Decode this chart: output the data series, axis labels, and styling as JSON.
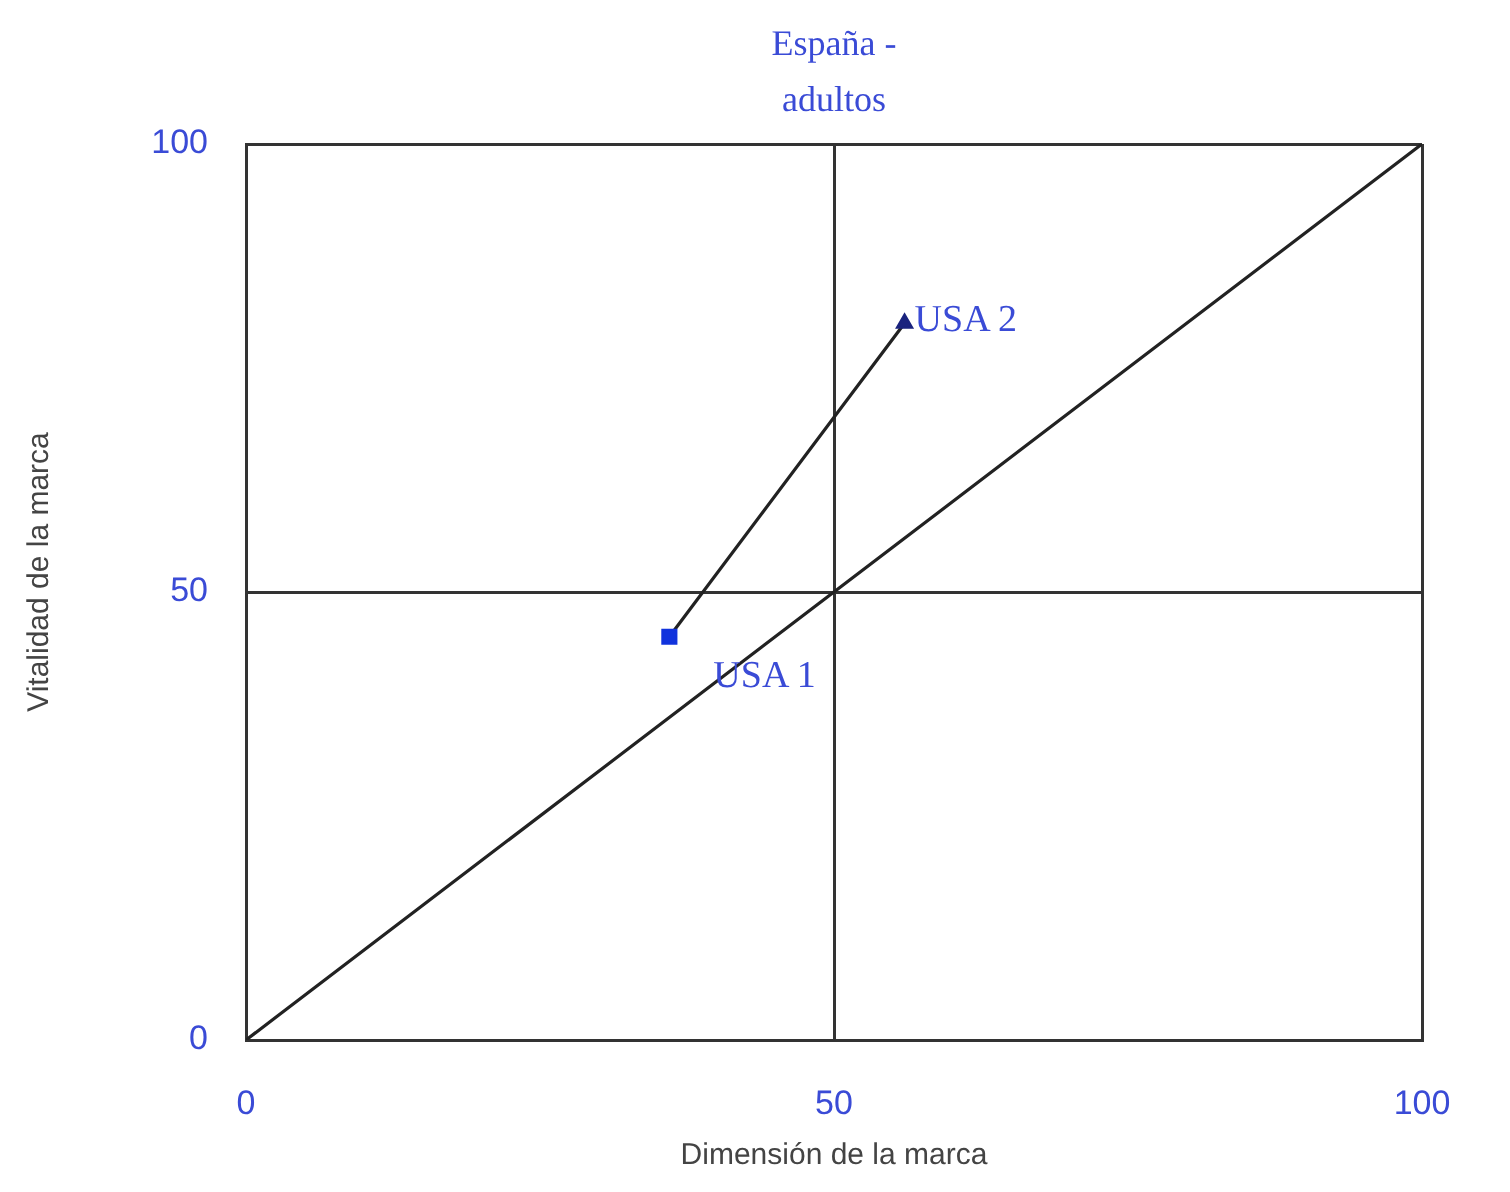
{
  "chart_data": {
    "type": "scatter",
    "title": "España - adultos",
    "xlabel": "Dimensión de la marca",
    "ylabel": "Vitalidad de la marca",
    "xlim": [
      0,
      100
    ],
    "ylim": [
      0,
      100
    ],
    "xticks": [
      0,
      50,
      100
    ],
    "yticks": [
      0,
      50,
      100
    ],
    "grid": true,
    "legend": false,
    "series": [
      {
        "type": "line",
        "color": "#222222",
        "x": [
          0,
          100
        ],
        "values": [
          0,
          100
        ],
        "marker": "none"
      },
      {
        "type": "line",
        "color": "#222222",
        "x": [
          36,
          56
        ],
        "values": [
          45,
          80
        ],
        "marker": "none"
      },
      {
        "name": "USA 1",
        "color": "#1133dd",
        "x": [
          36
        ],
        "values": [
          45
        ],
        "marker": "square"
      },
      {
        "name": "USA 2",
        "color": "#1a237e",
        "x": [
          56
        ],
        "values": [
          80
        ],
        "marker": "triangle"
      }
    ]
  }
}
